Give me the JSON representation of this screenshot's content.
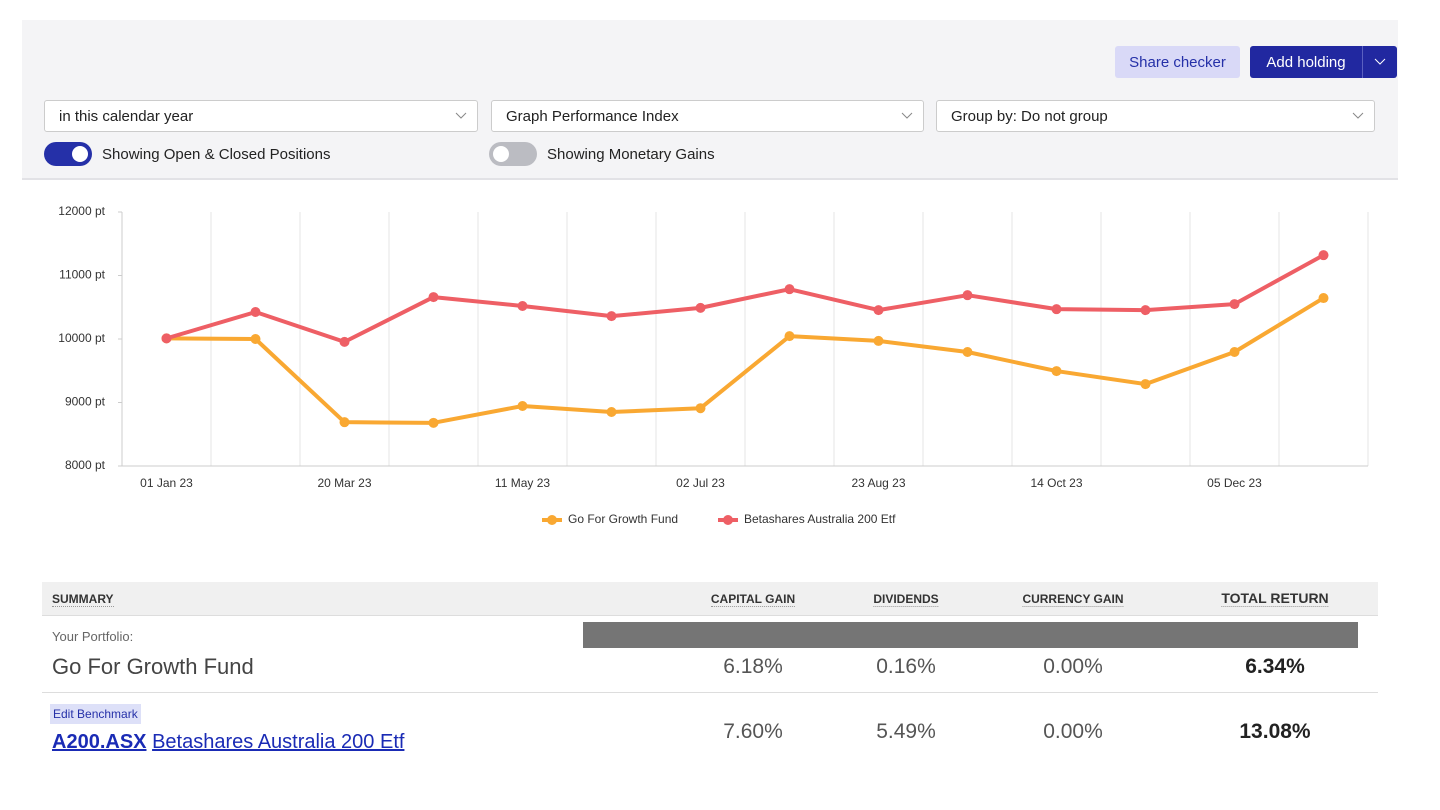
{
  "header": {
    "buttons": [
      "Share checker",
      "Add holding"
    ]
  },
  "filters": {
    "dropdowns": [
      "in this calendar year",
      "Graph Performance Index",
      "Group by: Do not group"
    ],
    "toggles": [
      {
        "label": "Showing Open & Closed Positions",
        "on": true
      },
      {
        "label": "Showing Monetary Gains",
        "on": false
      }
    ]
  },
  "chart_data": {
    "type": "line",
    "categories": [
      "01 Jan 23",
      null,
      "20 Mar 23",
      null,
      "11 May 23",
      null,
      "02 Jul 23",
      null,
      "23 Aug 23",
      null,
      "14 Oct 23",
      null,
      "05 Dec 23",
      null
    ],
    "series": [
      {
        "name": "Go For Growth Fund",
        "color": "#f9a832",
        "values": [
          10010,
          10000,
          8690,
          8680,
          8945,
          8850,
          8910,
          10045,
          9970,
          9795,
          9495,
          9290,
          9795,
          10645
        ]
      },
      {
        "name": "Betashares Australia 200 Etf",
        "color": "#ee5f65",
        "values": [
          10010,
          10425,
          9955,
          10660,
          10520,
          10360,
          10490,
          10785,
          10455,
          10690,
          10470,
          10455,
          10550,
          11320
        ]
      }
    ],
    "ylim": [
      8000,
      12000
    ],
    "yticks": [
      {
        "value": 8000,
        "label": "8000 pt"
      },
      {
        "value": 9000,
        "label": "9000 pt"
      },
      {
        "value": 10000,
        "label": "10000 pt"
      },
      {
        "value": 11000,
        "label": "11000 pt"
      },
      {
        "value": 12000,
        "label": "12000 pt"
      }
    ],
    "legend": "bottom"
  },
  "summary": {
    "columns": [
      "SUMMARY",
      "CAPITAL GAIN",
      "DIVIDENDS",
      "CURRENCY GAIN",
      "TOTAL RETURN"
    ],
    "portfolio": {
      "caption": "Your Portfolio:",
      "name": "Go For Growth Fund",
      "values": [
        "6.18%",
        "0.16%",
        "0.00%",
        "6.34%"
      ]
    },
    "benchmark": {
      "action": "Edit Benchmark",
      "code": "A200.ASX",
      "name": "Betashares Australia 200 Etf",
      "values": [
        "7.60%",
        "5.49%",
        "0.00%",
        "13.08%"
      ]
    }
  }
}
